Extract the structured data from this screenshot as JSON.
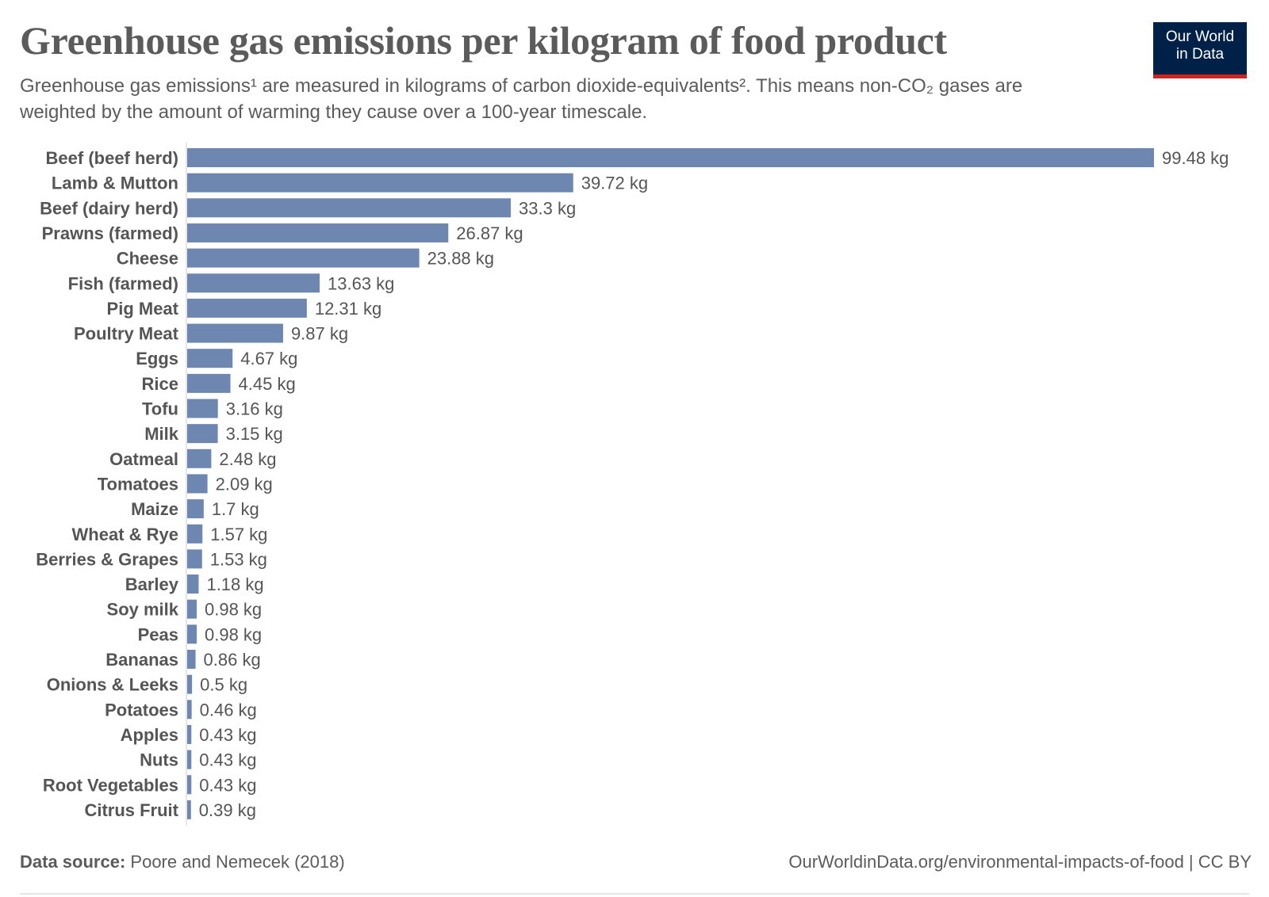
{
  "header": {
    "title": "Greenhouse gas emissions per kilogram of food product",
    "subtitle": "Greenhouse gas emissions¹ are measured in kilograms of carbon dioxide-equivalents². This means non-CO₂ gases are weighted by the amount of warming they cause over a 100-year timescale.",
    "logo_line1": "Our World",
    "logo_line2": "in Data"
  },
  "footer": {
    "source_label": "Data source:",
    "source": "Poore and Nemecek (2018)",
    "url": "OurWorldinData.org/environmental-impacts-of-food | CC BY"
  },
  "colors": {
    "bar": "#6d87b0",
    "logo_bg": "#002147",
    "logo_accent": "#ce261e",
    "text": "#5b5b5b"
  },
  "chart_data": {
    "type": "bar",
    "orientation": "horizontal",
    "unit": "kg",
    "categories": [
      "Beef (beef herd)",
      "Lamb & Mutton",
      "Beef (dairy herd)",
      "Prawns (farmed)",
      "Cheese",
      "Fish (farmed)",
      "Pig Meat",
      "Poultry Meat",
      "Eggs",
      "Rice",
      "Tofu",
      "Milk",
      "Oatmeal",
      "Tomatoes",
      "Maize",
      "Wheat & Rye",
      "Berries & Grapes",
      "Barley",
      "Soy milk",
      "Peas",
      "Bananas",
      "Onions & Leeks",
      "Potatoes",
      "Apples",
      "Nuts",
      "Root Vegetables",
      "Citrus Fruit"
    ],
    "values": [
      99.48,
      39.72,
      33.3,
      26.87,
      23.88,
      13.63,
      12.31,
      9.87,
      4.67,
      4.45,
      3.16,
      3.15,
      2.48,
      2.09,
      1.7,
      1.57,
      1.53,
      1.18,
      0.98,
      0.98,
      0.86,
      0.5,
      0.46,
      0.43,
      0.43,
      0.43,
      0.39
    ],
    "value_labels": [
      "99.48 kg",
      "39.72 kg",
      "33.3 kg",
      "26.87 kg",
      "23.88 kg",
      "13.63 kg",
      "12.31 kg",
      "9.87 kg",
      "4.67 kg",
      "4.45 kg",
      "3.16 kg",
      "3.15 kg",
      "2.48 kg",
      "2.09 kg",
      "1.7 kg",
      "1.57 kg",
      "1.53 kg",
      "1.18 kg",
      "0.98 kg",
      "0.98 kg",
      "0.86 kg",
      "0.5 kg",
      "0.46 kg",
      "0.43 kg",
      "0.43 kg",
      "0.43 kg",
      "0.39 kg"
    ],
    "grid": false
  }
}
